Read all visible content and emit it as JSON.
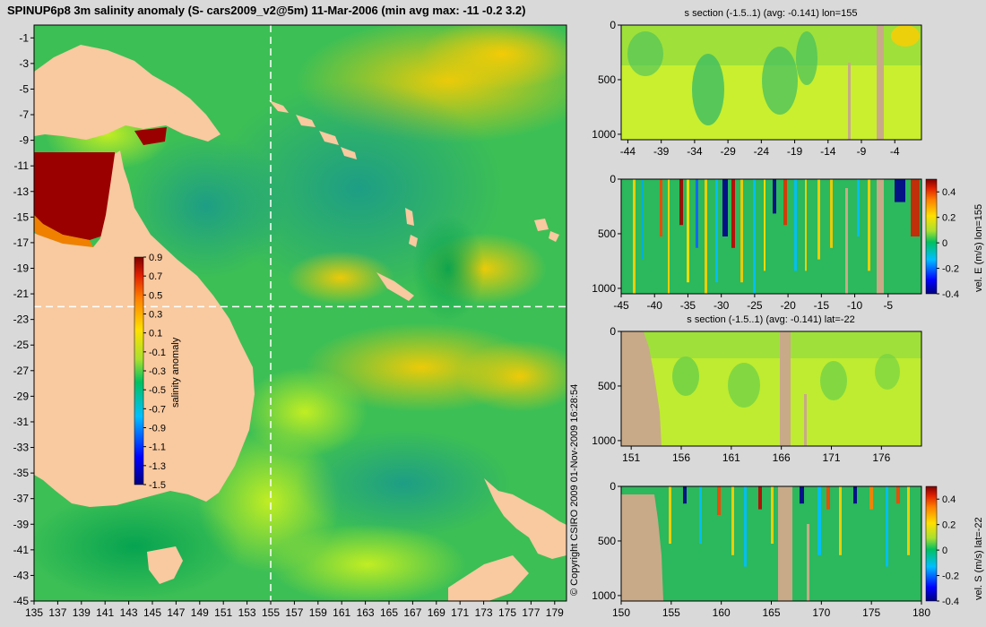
{
  "title": "SPINUP6p8 3m salinity anomaly (S- cars2009_v2@5m) 11-Mar-2006 (min avg max: -11 -0.2 3.2)",
  "copyright": "© Copyright CSIRO 2009   01-Nov-2009 16:28:54",
  "colors": {
    "land": "#f9c99f",
    "section_land": "#c8aa88",
    "guide_line": "#ffffff"
  },
  "chart_data": [
    {
      "type": "heatmap",
      "title": "",
      "xlabel": "",
      "ylabel": "",
      "xlim": [
        135,
        180
      ],
      "ylim": [
        -45,
        0
      ],
      "x_ticks": [
        "135",
        "137",
        "139",
        "141",
        "143",
        "145",
        "147",
        "149",
        "151",
        "153",
        "155",
        "157",
        "159",
        "161",
        "163",
        "165",
        "167",
        "169",
        "171",
        "173",
        "175",
        "177",
        "179"
      ],
      "y_ticks": [
        "-1",
        "-3",
        "-5",
        "-7",
        "-9",
        "-11",
        "-13",
        "-15",
        "-17",
        "-19",
        "-21",
        "-23",
        "-25",
        "-27",
        "-29",
        "-31",
        "-33",
        "-35",
        "-37",
        "-39",
        "-41",
        "-43",
        "-45"
      ],
      "guide_lon": 155,
      "guide_lat": -22,
      "colorbar": {
        "label": "salinity anomaly",
        "min": -1.5,
        "max": 0.9,
        "ticks": [
          "0.9",
          "0.7",
          "0.5",
          "0.3",
          "0.1",
          "-0.1",
          "-0.3",
          "-0.5",
          "-0.7",
          "-0.9",
          "-1.1",
          "-1.3",
          "-1.5"
        ]
      }
    },
    {
      "type": "heatmap",
      "title": "s section (-1.5..1) (avg: -0.141) lon=155",
      "xlabel": "",
      "ylabel": "",
      "xlim": [
        -45,
        0
      ],
      "ylim": [
        1050,
        0
      ],
      "x_ticks": [
        "-44",
        "-39",
        "-34",
        "-29",
        "-24",
        "-19",
        "-14",
        "-9",
        "-4"
      ],
      "y_ticks": [
        "0",
        "500",
        "1000"
      ]
    },
    {
      "type": "heatmap",
      "title": "",
      "xlabel": "",
      "ylabel": "",
      "xlim": [
        -45,
        0
      ],
      "ylim": [
        1050,
        0
      ],
      "x_ticks": [
        "-45",
        "-40",
        "-35",
        "-30",
        "-25",
        "-20",
        "-15",
        "-10",
        "-5"
      ],
      "y_ticks": [
        "0",
        "500",
        "1000"
      ],
      "colorbar": {
        "label": "vel. E (m/s) lon=155",
        "min": -0.4,
        "max": 0.5,
        "ticks": [
          "0.4",
          "0.2",
          "0",
          "-0.2",
          "-0.4"
        ]
      }
    },
    {
      "type": "heatmap",
      "title": "s section (-1.5..1) (avg: -0.141) lat=-22",
      "xlabel": "",
      "ylabel": "",
      "xlim": [
        150,
        180
      ],
      "ylim": [
        1050,
        0
      ],
      "x_ticks": [
        "151",
        "156",
        "161",
        "166",
        "171",
        "176"
      ],
      "y_ticks": [
        "0",
        "500",
        "1000"
      ]
    },
    {
      "type": "heatmap",
      "title": "",
      "xlabel": "",
      "ylabel": "",
      "xlim": [
        150,
        180
      ],
      "ylim": [
        1050,
        0
      ],
      "x_ticks": [
        "150",
        "155",
        "160",
        "165",
        "170",
        "175",
        "180"
      ],
      "y_ticks": [
        "0",
        "500",
        "1000"
      ],
      "colorbar": {
        "label": "vel. S (m/s) lat=-22",
        "min": -0.4,
        "max": 0.5,
        "ticks": [
          "0.4",
          "0.2",
          "0",
          "-0.2",
          "-0.4"
        ]
      }
    }
  ]
}
